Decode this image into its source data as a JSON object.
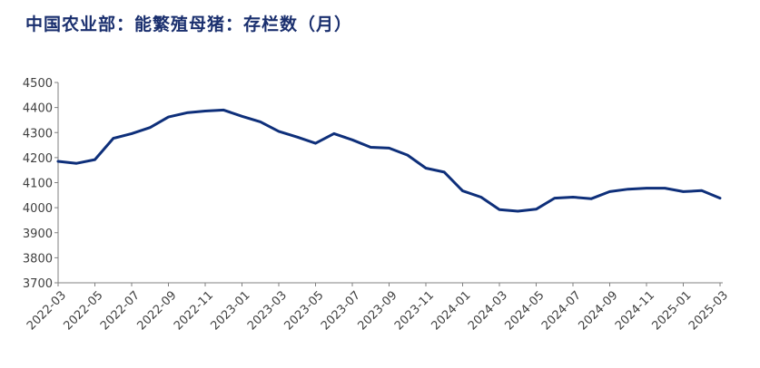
{
  "chart_data": {
    "type": "line",
    "title": "中国农业部：能繁殖母猪：存栏数（月）",
    "xlabel": "",
    "ylabel": "",
    "ylim": [
      3700,
      4500
    ],
    "yticks": [
      3700,
      3800,
      3900,
      4000,
      4100,
      4200,
      4300,
      4400,
      4500
    ],
    "xtick_labels": [
      "2022-03",
      "2022-05",
      "2022-07",
      "2022-09",
      "2022-11",
      "2023-01",
      "2023-03",
      "2023-05",
      "2023-07",
      "2023-09",
      "2023-11",
      "2024-01",
      "2024-03",
      "2024-05",
      "2024-07",
      "2024-09",
      "2024-11",
      "2025-01",
      "2025-03"
    ],
    "grid": false,
    "legend": "none",
    "series": [
      {
        "color": "#0e2f7a",
        "x": [
          "2022-03",
          "2022-04",
          "2022-05",
          "2022-06",
          "2022-07",
          "2022-08",
          "2022-09",
          "2022-10",
          "2022-11",
          "2022-12",
          "2023-01",
          "2023-02",
          "2023-03",
          "2023-04",
          "2023-05",
          "2023-06",
          "2023-07",
          "2023-08",
          "2023-09",
          "2023-10",
          "2023-11",
          "2023-12",
          "2024-01",
          "2024-02",
          "2024-03",
          "2024-04",
          "2024-05",
          "2024-06",
          "2024-07",
          "2024-08",
          "2024-09",
          "2024-10",
          "2024-11",
          "2024-12",
          "2025-01",
          "2025-02",
          "2025-03"
        ],
        "values": [
          4185,
          4177,
          4192,
          4277,
          4296,
          4320,
          4362,
          4379,
          4386,
          4390,
          4365,
          4343,
          4305,
          4282,
          4257,
          4296,
          4271,
          4241,
          4238,
          4210,
          4158,
          4142,
          4067,
          4042,
          3992,
          3986,
          3994,
          4038,
          4042,
          4036,
          4064,
          4074,
          4078,
          4078,
          4064,
          4068,
          4038
        ]
      }
    ]
  }
}
